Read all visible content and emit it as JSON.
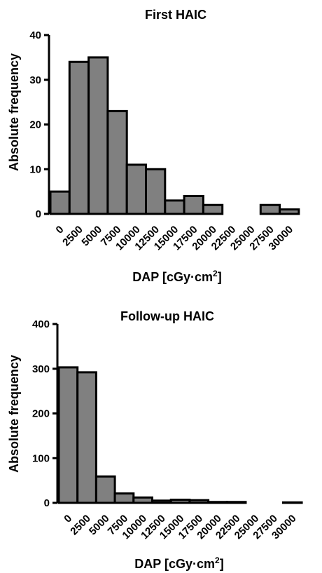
{
  "chart_data": [
    {
      "type": "bar",
      "title": "First HAIC",
      "ylabel": "Absolute frequency",
      "xlabel": "DAP [cGy·cm",
      "xlabel_sup": "2",
      "xlabel_tail": "]",
      "categories": [
        "0",
        "2500",
        "5000",
        "7500",
        "10000",
        "12500",
        "15000",
        "17500",
        "20000",
        "22500",
        "25000",
        "27500",
        "30000"
      ],
      "values": [
        5,
        34,
        35,
        23,
        11,
        10,
        3,
        4,
        2,
        0,
        0,
        2,
        1
      ],
      "ylim": [
        0,
        40
      ],
      "yticks": [
        "0",
        "10",
        "20",
        "30",
        "40"
      ],
      "grid": false
    },
    {
      "type": "bar",
      "title": "Follow-up HAIC",
      "ylabel": "Absolute frequency",
      "xlabel": "DAP [cGy·cm",
      "xlabel_sup": "2",
      "xlabel_tail": "]",
      "categories": [
        "0",
        "2500",
        "5000",
        "7500",
        "10000",
        "12500",
        "15000",
        "17500",
        "20000",
        "22500",
        "25000",
        "27500",
        "30000"
      ],
      "values": [
        303,
        292,
        59,
        21,
        12,
        5,
        7,
        6,
        2,
        2,
        0,
        0,
        1
      ],
      "ylim": [
        0,
        400
      ],
      "yticks": [
        "0",
        "100",
        "200",
        "300",
        "400"
      ],
      "grid": false
    }
  ]
}
